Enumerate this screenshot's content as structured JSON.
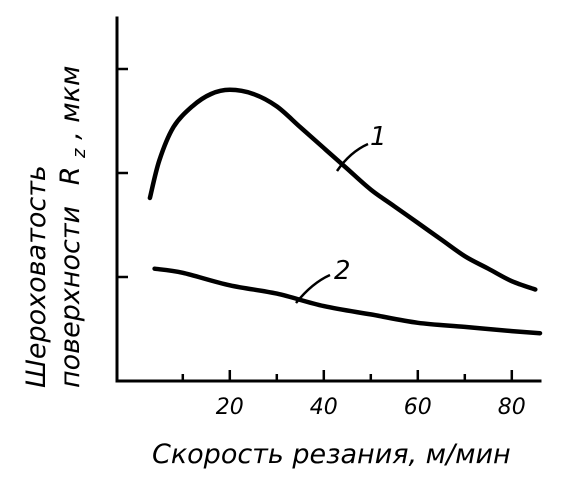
{
  "chart_data": {
    "type": "line",
    "xlabel": "Скорость резания, м/мин",
    "ylabel_line1": "Шероховатость",
    "ylabel_line2": "поверхности",
    "ylabel_symbol": "R",
    "ylabel_subscript": "z",
    "ylabel_unit": ", мкм",
    "xlim": [
      -4,
      86
    ],
    "x_ticks": [
      20,
      40,
      60,
      80
    ],
    "x_minor_ticks": [
      10,
      30,
      50,
      70
    ],
    "y_ticks_relative": [
      0.25,
      0.5,
      0.75
    ],
    "grid": false,
    "series": [
      {
        "name": "1",
        "x": [
          3,
          5,
          8,
          12,
          16,
          20,
          25,
          30,
          35,
          40,
          45,
          50,
          55,
          60,
          65,
          70,
          75,
          80,
          85
        ],
        "y_relative": [
          0.44,
          0.53,
          0.61,
          0.66,
          0.69,
          0.7,
          0.69,
          0.66,
          0.61,
          0.56,
          0.51,
          0.46,
          0.42,
          0.38,
          0.34,
          0.3,
          0.27,
          0.24,
          0.22
        ]
      },
      {
        "name": "2",
        "x": [
          4,
          10,
          20,
          30,
          40,
          50,
          60,
          70,
          80,
          86
        ],
        "y_relative": [
          0.27,
          0.26,
          0.23,
          0.21,
          0.18,
          0.16,
          0.14,
          0.13,
          0.12,
          0.115
        ]
      }
    ]
  }
}
